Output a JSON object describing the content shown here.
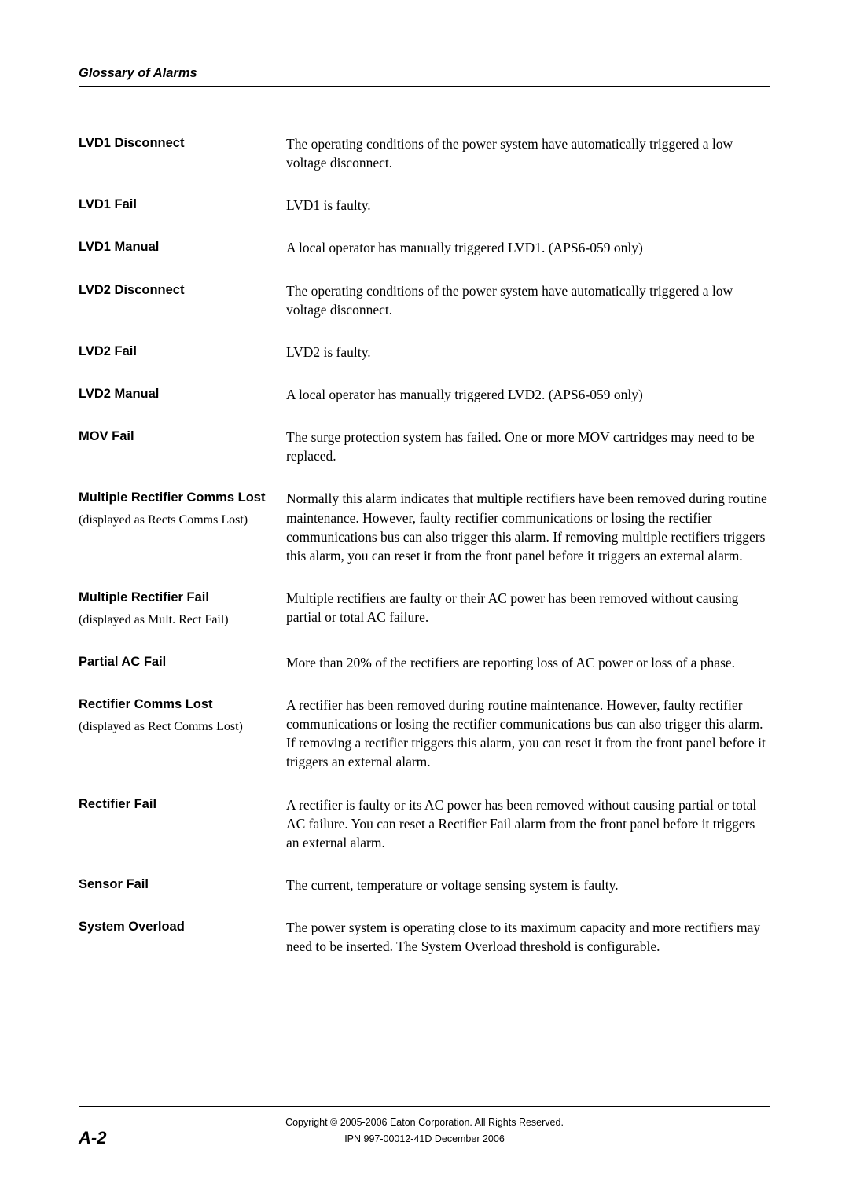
{
  "header": {
    "title": "Glossary of Alarms"
  },
  "entries": [
    {
      "term": "LVD1 Disconnect",
      "sub": null,
      "desc": "The operating conditions of the power system have automatically triggered a low voltage disconnect."
    },
    {
      "term": "LVD1 Fail",
      "sub": null,
      "desc": "LVD1 is faulty."
    },
    {
      "term": "LVD1 Manual",
      "sub": null,
      "desc": "A local operator has manually triggered LVD1.  (APS6-059 only)"
    },
    {
      "term": "LVD2 Disconnect",
      "sub": null,
      "desc": "The operating conditions of the power system have automatically triggered a low voltage disconnect."
    },
    {
      "term": "LVD2 Fail",
      "sub": null,
      "desc": "LVD2 is faulty."
    },
    {
      "term": "LVD2 Manual",
      "sub": null,
      "desc": "A local operator has manually triggered LVD2.  (APS6-059 only)"
    },
    {
      "term": "MOV Fail",
      "sub": null,
      "desc": "The surge protection system has failed.  One or more MOV cartridges may need to be replaced."
    },
    {
      "term": "Multiple Rectifier Comms Lost",
      "sub": "(displayed as Rects Comms Lost)",
      "desc": "Normally this alarm indicates that multiple rectifiers have been removed during routine maintenance.  However, faulty rectifier communications or losing the rectifier communications bus can also trigger this alarm.  If removing multiple rectifiers triggers this alarm, you can reset it from the front panel before it triggers an external alarm."
    },
    {
      "term": "Multiple Rectifier Fail",
      "sub": "(displayed as Mult. Rect Fail)",
      "desc": "Multiple rectifiers are faulty or their AC power has been removed without causing partial or total AC failure."
    },
    {
      "term": "Partial AC Fail",
      "sub": null,
      "desc": "More than 20% of the rectifiers are reporting loss of AC power or loss of a phase."
    },
    {
      "term": "Rectifier Comms Lost",
      "sub": "(displayed as Rect Comms Lost)",
      "desc": "A rectifier has been removed during routine maintenance.  However, faulty rectifier communications or losing the rectifier communications bus can also trigger this alarm.  If removing a rectifier triggers this alarm, you can reset it from the front panel before it triggers an external alarm."
    },
    {
      "term": "Rectifier Fail",
      "sub": null,
      "desc": "A rectifier is faulty or its AC power has been removed without causing partial or total AC failure.  You can reset a Rectifier Fail alarm from the front panel before it triggers an external alarm."
    },
    {
      "term": "Sensor Fail",
      "sub": null,
      "desc": "The current, temperature or voltage sensing system is faulty."
    },
    {
      "term": "System Overload",
      "sub": null,
      "desc": "The power system is operating close to its maximum capacity and more rectifiers may need to be inserted.  The System Overload threshold is configurable."
    }
  ],
  "footer": {
    "page": "A-2",
    "copyright": "Copyright © 2005-2006 Eaton Corporation.  All Rights Reserved.",
    "ipn": "IPN 997-00012-41D    December 2006"
  }
}
